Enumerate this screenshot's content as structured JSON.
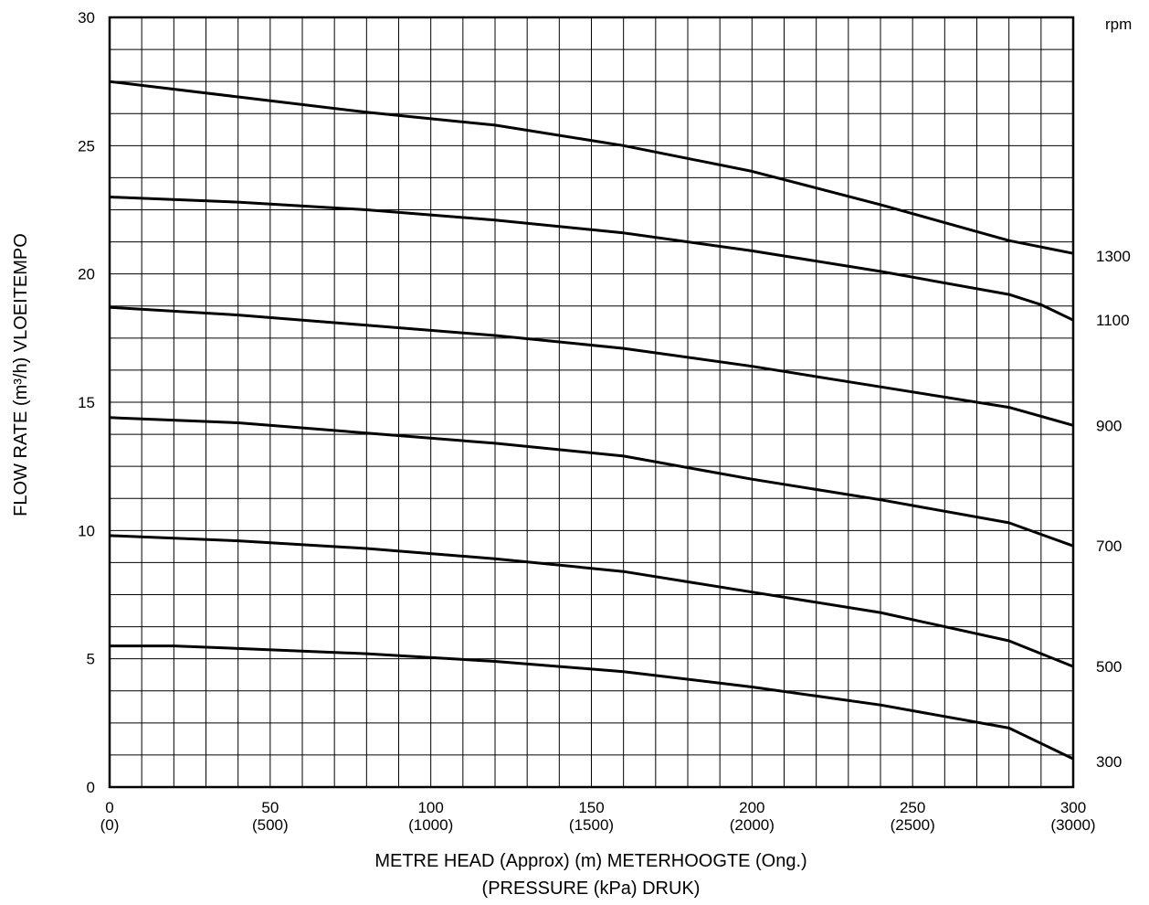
{
  "chart_data": {
    "type": "line",
    "xlabel": "METRE HEAD (Approx) (m) METERHOOGTE (Ong.)",
    "xlabel2": "(PRESSURE (kPa) DRUK)",
    "ylabel": "FLOW RATE (m³/h) VLOEITEMPO",
    "right_axis_unit": "rpm",
    "xlim": [
      0,
      300
    ],
    "ylim": [
      0,
      30
    ],
    "grid": true,
    "x_ticks": [
      {
        "value": 0,
        "label": "0",
        "sub": "(0)"
      },
      {
        "value": 50,
        "label": "50",
        "sub": "(500)"
      },
      {
        "value": 100,
        "label": "100",
        "sub": "(1000)"
      },
      {
        "value": 150,
        "label": "150",
        "sub": "(1500)"
      },
      {
        "value": 200,
        "label": "200",
        "sub": "(2000)"
      },
      {
        "value": 250,
        "label": "250",
        "sub": "(2500)"
      },
      {
        "value": 300,
        "label": "300",
        "sub": "(3000)"
      }
    ],
    "y_ticks": [
      {
        "value": 0,
        "label": "0"
      },
      {
        "value": 5,
        "label": "5"
      },
      {
        "value": 10,
        "label": "10"
      },
      {
        "value": 15,
        "label": "15"
      },
      {
        "value": 20,
        "label": "20"
      },
      {
        "value": 25,
        "label": "25"
      },
      {
        "value": 30,
        "label": "30"
      }
    ],
    "series": [
      {
        "name": "1300",
        "label_y": 20.7,
        "x": [
          0,
          40,
          80,
          120,
          160,
          200,
          240,
          280,
          300
        ],
        "y": [
          27.5,
          26.9,
          26.3,
          25.8,
          25.0,
          24.0,
          22.7,
          21.3,
          20.8
        ]
      },
      {
        "name": "1100",
        "label_y": 18.2,
        "x": [
          0,
          40,
          80,
          120,
          160,
          200,
          240,
          280,
          290,
          300
        ],
        "y": [
          23.0,
          22.8,
          22.5,
          22.1,
          21.6,
          20.9,
          20.1,
          19.2,
          18.8,
          18.2
        ]
      },
      {
        "name": "900",
        "label_y": 14.1,
        "x": [
          0,
          40,
          80,
          120,
          160,
          200,
          240,
          280,
          300
        ],
        "y": [
          18.7,
          18.4,
          18.0,
          17.6,
          17.1,
          16.4,
          15.6,
          14.8,
          14.1
        ]
      },
      {
        "name": "700",
        "label_y": 9.4,
        "x": [
          0,
          40,
          80,
          120,
          160,
          200,
          240,
          280,
          300
        ],
        "y": [
          14.4,
          14.2,
          13.8,
          13.4,
          12.9,
          12.0,
          11.2,
          10.3,
          9.4
        ]
      },
      {
        "name": "500",
        "label_y": 4.7,
        "x": [
          0,
          40,
          80,
          120,
          160,
          200,
          240,
          280,
          300
        ],
        "y": [
          9.8,
          9.6,
          9.3,
          8.9,
          8.4,
          7.6,
          6.8,
          5.7,
          4.7
        ]
      },
      {
        "name": "300",
        "label_y": 1.0,
        "x": [
          0,
          20,
          40,
          80,
          120,
          160,
          200,
          240,
          280,
          300
        ],
        "y": [
          5.5,
          5.5,
          5.4,
          5.2,
          4.9,
          4.5,
          3.9,
          3.2,
          2.3,
          1.1
        ]
      }
    ]
  }
}
